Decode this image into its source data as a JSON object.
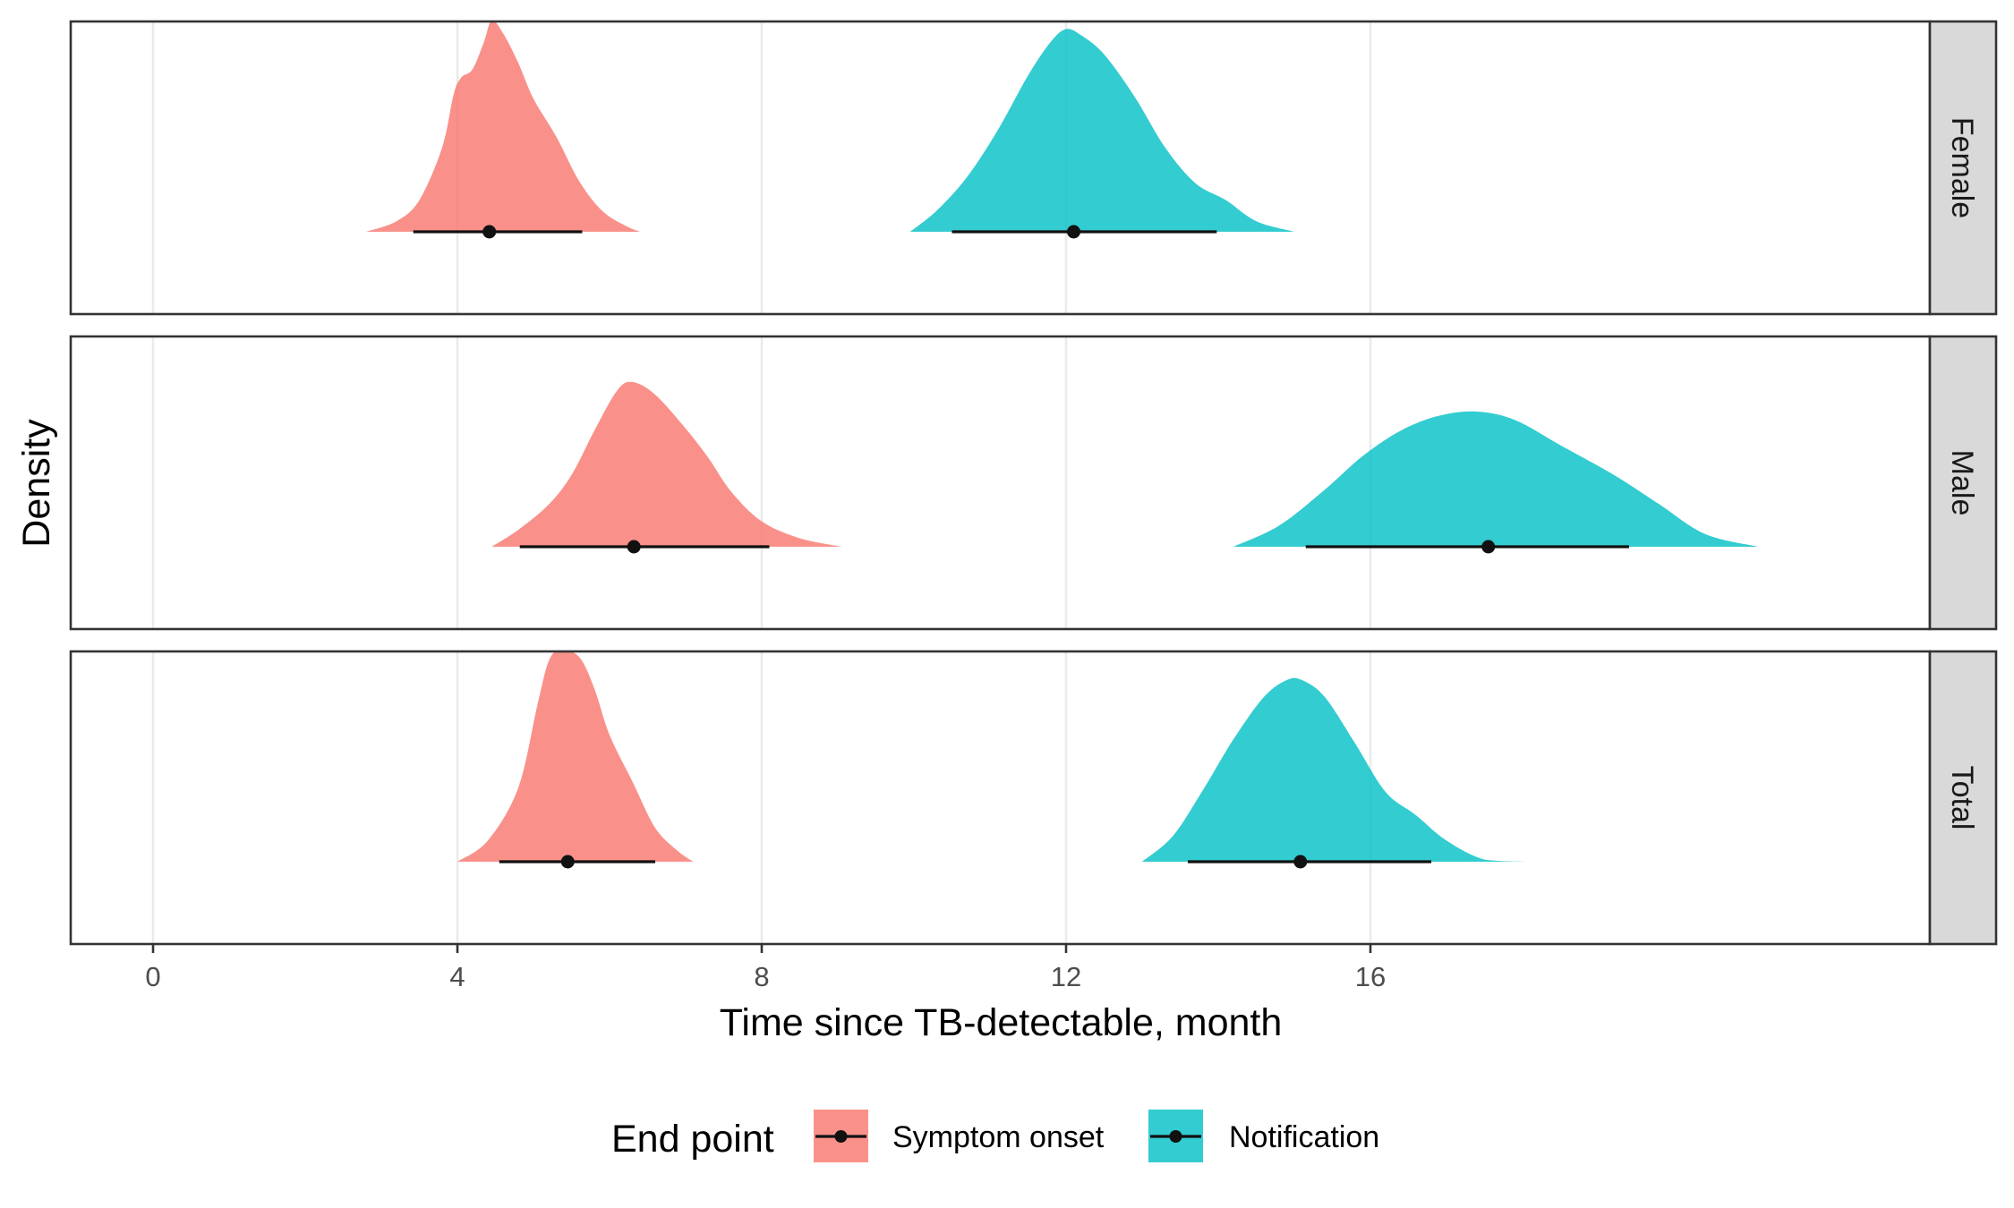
{
  "chart_data": {
    "type": "area",
    "subtype": "faceted half-eye density (posterior distributions) with median point and interval",
    "xlabel": "Time since TB-detectable, month",
    "ylabel": "Density",
    "xlim": [
      -0.9,
      20.5
    ],
    "xticks": [
      0,
      4,
      8,
      12,
      16
    ],
    "grid": "vertical major gridlines",
    "legend": {
      "title": "End point",
      "position": "bottom",
      "entries": [
        {
          "label": "Symptom onset",
          "color": "#F8766D"
        },
        {
          "label": "Notification",
          "color": "#00BFC4"
        }
      ]
    },
    "colors": {
      "Symptom onset": "#F8766D",
      "Notification": "#00BFC4",
      "strip_fill": "#D9D9D9",
      "panel_border": "#333333",
      "grid": "#EBEBEB"
    },
    "facets": [
      {
        "label": "Female",
        "series": [
          {
            "name": "Symptom onset",
            "median": 4.42,
            "interval": [
              3.42,
              5.64
            ],
            "density_x": [
              2.8,
              3.2,
              3.5,
              3.8,
              3.95,
              4.05,
              4.2,
              4.35,
              4.45,
              4.6,
              4.8,
              5.0,
              5.3,
              5.6,
              5.9,
              6.2,
              6.4
            ],
            "density_y": [
              0.0,
              0.05,
              0.15,
              0.4,
              0.65,
              0.73,
              0.77,
              0.9,
              1.0,
              0.94,
              0.8,
              0.63,
              0.45,
              0.24,
              0.1,
              0.03,
              0.0
            ]
          },
          {
            "name": "Notification",
            "median": 12.1,
            "interval": [
              10.5,
              13.98
            ],
            "density_x": [
              9.95,
              10.3,
              10.7,
              11.1,
              11.5,
              11.8,
              12.0,
              12.2,
              12.5,
              12.9,
              13.3,
              13.7,
              14.1,
              14.5,
              15.0
            ],
            "density_y": [
              0.0,
              0.1,
              0.26,
              0.48,
              0.74,
              0.9,
              0.96,
              0.93,
              0.84,
              0.64,
              0.4,
              0.23,
              0.15,
              0.05,
              0.0
            ]
          }
        ]
      },
      {
        "label": "Male",
        "series": [
          {
            "name": "Symptom onset",
            "median": 6.32,
            "interval": [
              4.82,
              8.1
            ],
            "density_x": [
              4.45,
              4.8,
              5.2,
              5.5,
              5.8,
              6.1,
              6.3,
              6.6,
              7.0,
              7.3,
              7.6,
              8.0,
              8.5,
              9.05
            ],
            "density_y": [
              0.0,
              0.08,
              0.2,
              0.34,
              0.55,
              0.74,
              0.78,
              0.72,
              0.56,
              0.42,
              0.26,
              0.12,
              0.04,
              0.0
            ]
          },
          {
            "name": "Notification",
            "median": 17.55,
            "interval": [
              15.15,
              19.4
            ],
            "density_x": [
              14.2,
              14.8,
              15.4,
              15.9,
              16.4,
              16.9,
              17.4,
              17.9,
              18.5,
              19.2,
              19.8,
              20.4,
              21.1
            ],
            "density_y": [
              0.0,
              0.1,
              0.27,
              0.43,
              0.55,
              0.62,
              0.64,
              0.6,
              0.48,
              0.34,
              0.2,
              0.06,
              0.0
            ]
          }
        ]
      },
      {
        "label": "Total",
        "series": [
          {
            "name": "Symptom onset",
            "median": 5.45,
            "interval": [
              4.55,
              6.6
            ],
            "density_x": [
              4.0,
              4.4,
              4.8,
              5.05,
              5.2,
              5.35,
              5.6,
              5.8,
              6.0,
              6.3,
              6.6,
              6.9,
              7.1
            ],
            "density_y": [
              0.0,
              0.1,
              0.35,
              0.74,
              0.95,
              1.0,
              0.97,
              0.82,
              0.6,
              0.38,
              0.16,
              0.05,
              0.0
            ]
          },
          {
            "name": "Notification",
            "median": 15.08,
            "interval": [
              13.6,
              16.8
            ],
            "density_x": [
              13.0,
              13.4,
              13.8,
              14.2,
              14.6,
              14.9,
              15.1,
              15.4,
              15.8,
              16.2,
              16.6,
              17.0,
              17.5,
              18.05
            ],
            "density_y": [
              0.0,
              0.12,
              0.34,
              0.58,
              0.78,
              0.86,
              0.86,
              0.78,
              0.56,
              0.33,
              0.22,
              0.1,
              0.01,
              0.0
            ]
          }
        ]
      }
    ]
  }
}
